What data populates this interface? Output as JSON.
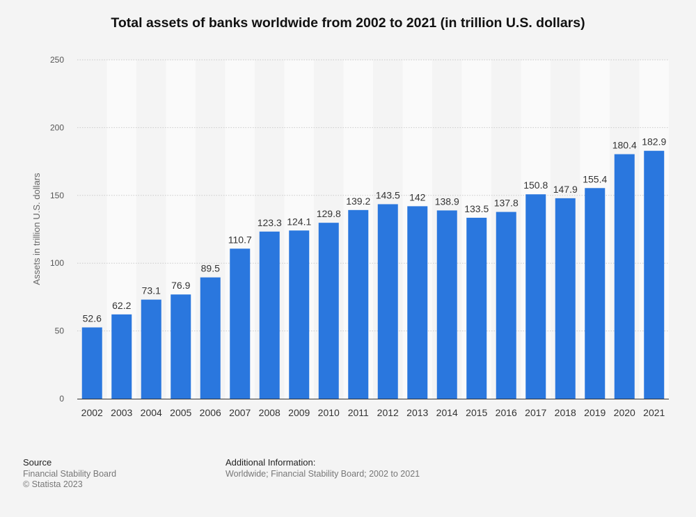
{
  "chart_data": {
    "type": "bar",
    "title": "Total assets of banks worldwide from 2002 to 2021 (in trillion U.S. dollars)",
    "ylabel": "Assets in trillion U.S. dollars",
    "xlabel": "",
    "ylim": [
      0,
      250
    ],
    "yticks": [
      0,
      50,
      100,
      150,
      200,
      250
    ],
    "grid": true,
    "bar_color": "#2a77de",
    "categories": [
      "2002",
      "2003",
      "2004",
      "2005",
      "2006",
      "2007",
      "2008",
      "2009",
      "2010",
      "2011",
      "2012",
      "2013",
      "2014",
      "2015",
      "2016",
      "2017",
      "2018",
      "2019",
      "2020",
      "2021"
    ],
    "values": [
      52.6,
      62.2,
      73.1,
      76.9,
      89.5,
      110.7,
      123.3,
      124.1,
      129.8,
      139.2,
      143.5,
      142,
      138.9,
      133.5,
      137.8,
      150.8,
      147.9,
      155.4,
      180.4,
      182.9
    ],
    "value_labels": [
      "52.6",
      "62.2",
      "73.1",
      "76.9",
      "89.5",
      "110.7",
      "123.3",
      "124.1",
      "129.8",
      "139.2",
      "143.5",
      "142",
      "138.9",
      "133.5",
      "137.8",
      "150.8",
      "147.9",
      "155.4",
      "180.4",
      "182.9"
    ]
  },
  "footer": {
    "source_heading": "Source",
    "source_lines": [
      "Financial Stability Board",
      "© Statista 2023"
    ],
    "info_heading": "Additional Information:",
    "info_lines": [
      "Worldwide; Financial Stability Board; 2002 to 2021"
    ]
  }
}
